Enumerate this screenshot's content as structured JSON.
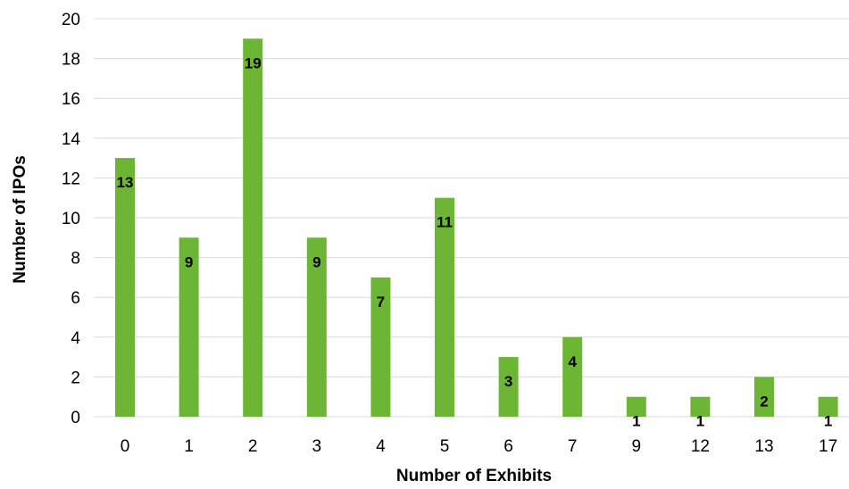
{
  "chart_data": {
    "type": "bar",
    "title": "",
    "xlabel": "Number of Exhibits",
    "ylabel": "Number of IPOs",
    "categories": [
      "0",
      "1",
      "2",
      "3",
      "4",
      "5",
      "6",
      "7",
      "9",
      "12",
      "13",
      "17"
    ],
    "values": [
      13,
      9,
      19,
      9,
      7,
      11,
      3,
      4,
      1,
      1,
      2,
      1
    ],
    "ylim": [
      0,
      20
    ],
    "yticks": [
      "0",
      "2",
      "4",
      "6",
      "8",
      "10",
      "12",
      "14",
      "16",
      "18",
      "20"
    ],
    "grid": true,
    "legend": "none",
    "data_labels": "inside-end",
    "bar_color": "#6CB535",
    "grid_color": "#D9D9D9"
  }
}
